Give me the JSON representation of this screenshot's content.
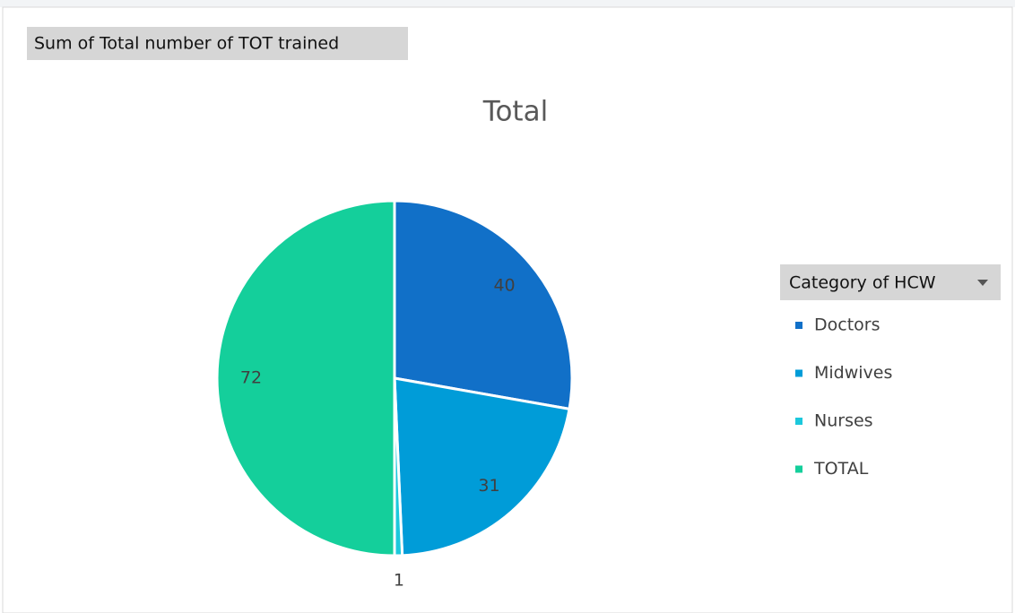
{
  "field_button": "Sum of Total number of TOT trained",
  "chart_data": {
    "type": "pie",
    "title": "Total",
    "legend_title": "Category of HCW",
    "categories": [
      "Doctors",
      "Midwives",
      "Nurses",
      "TOTAL"
    ],
    "values": [
      40,
      31,
      1,
      72
    ],
    "colors": [
      "#1170c8",
      "#009cd8",
      "#1cc8dc",
      "#14cf9b"
    ],
    "legend": "right"
  }
}
